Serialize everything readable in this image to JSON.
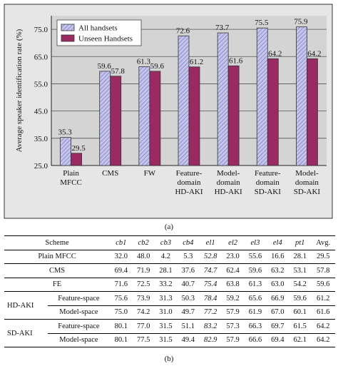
{
  "chart_data": {
    "type": "bar",
    "ylabel": "Average speaker identification rate (%)",
    "xlabel": "",
    "ylim": [
      25,
      80
    ],
    "yticks": [
      "25.0",
      "35.0",
      "45.0",
      "55.0",
      "65.0",
      "75.0"
    ],
    "ytick_values": [
      25,
      35,
      45,
      55,
      65,
      75
    ],
    "grid": true,
    "legend_position": "top-left",
    "categories": [
      [
        "Plain",
        "MFCC"
      ],
      [
        "CMS"
      ],
      [
        "FW"
      ],
      [
        "Feature-",
        "domain",
        "HD-AKI"
      ],
      [
        "Model-",
        "domain",
        "HD-AKI"
      ],
      [
        "Feature-",
        "domain",
        "SD-AKI"
      ],
      [
        "Model-",
        "domain",
        "SD-AKI"
      ]
    ],
    "series": [
      {
        "name": "All handsets",
        "values": [
          35.3,
          59.6,
          61.3,
          72.6,
          73.7,
          75.5,
          75.9
        ],
        "labels": [
          "35.3",
          "59.6",
          "61.3",
          "72.6",
          "73.7",
          "75.5",
          "75.9"
        ],
        "color": "#b9b9e6"
      },
      {
        "name": "Unseen Handsets",
        "values": [
          29.5,
          57.8,
          59.6,
          61.2,
          61.6,
          64.2,
          64.2
        ],
        "labels": [
          "29.5",
          "57.8",
          "59.6",
          "61.2",
          "61.6",
          "64.2",
          "64.2"
        ],
        "color": "#9c2a62"
      }
    ]
  },
  "figure_labels": {
    "a": "(a)",
    "b": "(b)"
  },
  "table": {
    "scheme_header": "Scheme",
    "columns": [
      "cb1",
      "cb2",
      "cb3",
      "cb4",
      "el1",
      "el2",
      "el3",
      "el4",
      "pt1",
      "Avg."
    ],
    "rows": [
      {
        "group": "",
        "label": "Plain MFCC",
        "values": [
          "32.0",
          "48.0",
          "4.2",
          "5.3",
          "52.8",
          "23.0",
          "55.6",
          "16.6",
          "28.1",
          "29.5"
        ]
      },
      {
        "group": "",
        "label": "CMS",
        "values": [
          "69.4",
          "71.9",
          "28.1",
          "37.6",
          "74.7",
          "62.4",
          "59.6",
          "63.2",
          "53.1",
          "57.8"
        ]
      },
      {
        "group": "",
        "label": "FE",
        "values": [
          "71.6",
          "72.5",
          "33.2",
          "40.7",
          "75.4",
          "63.8",
          "61.3",
          "63.0",
          "54.2",
          "59.6"
        ]
      },
      {
        "group": "HD-AKI",
        "label": "Feature-space",
        "values": [
          "75.6",
          "73.9",
          "31.3",
          "50.3",
          "78.4",
          "59.2",
          "65.6",
          "66.9",
          "59.6",
          "61.2"
        ]
      },
      {
        "group": "",
        "label": "Model-space",
        "values": [
          "75.0",
          "74.2",
          "31.0",
          "49.7",
          "77.2",
          "57.9",
          "61.9",
          "67.0",
          "60.1",
          "61.6"
        ]
      },
      {
        "group": "SD-AKI",
        "label": "Feature-space",
        "values": [
          "80.1",
          "77.0",
          "31.5",
          "51.1",
          "83.2",
          "57.3",
          "66.3",
          "69.7",
          "61.5",
          "64.2"
        ]
      },
      {
        "group": "",
        "label": "Model-space",
        "values": [
          "80.1",
          "77.5",
          "31.5",
          "49.4",
          "82.9",
          "57.9",
          "66.6",
          "69.4",
          "62.1",
          "64.2"
        ]
      }
    ]
  }
}
